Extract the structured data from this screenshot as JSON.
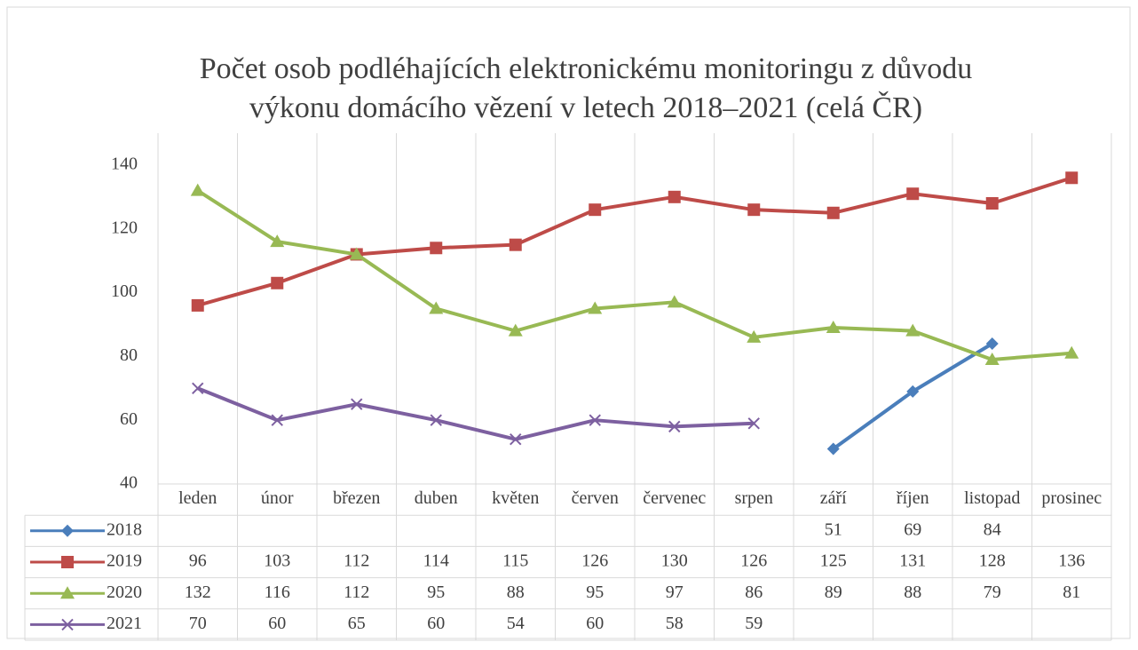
{
  "chart_data": {
    "type": "line",
    "title": [
      "Počet osob podléhajících elektronickému monitoringu z důvodu",
      "výkonu domácího vězení v letech 2018–2021 (celá ČR)"
    ],
    "categories": [
      "leden",
      "únor",
      "březen",
      "duben",
      "květen",
      "červen",
      "červenec",
      "srpen",
      "září",
      "říjen",
      "listopad",
      "prosinec"
    ],
    "series": [
      {
        "name": "2018",
        "color": "#4a7ebb",
        "marker": "diamond",
        "values": [
          null,
          null,
          null,
          null,
          null,
          null,
          null,
          null,
          51,
          69,
          84,
          null
        ]
      },
      {
        "name": "2019",
        "color": "#be4b48",
        "marker": "square",
        "values": [
          96,
          103,
          112,
          114,
          115,
          126,
          130,
          126,
          125,
          131,
          128,
          136
        ]
      },
      {
        "name": "2020",
        "color": "#98b954",
        "marker": "triangle",
        "values": [
          132,
          116,
          112,
          95,
          88,
          95,
          97,
          86,
          89,
          88,
          79,
          81
        ]
      },
      {
        "name": "2021",
        "color": "#7d60a0",
        "marker": "x",
        "values": [
          70,
          60,
          65,
          60,
          54,
          60,
          58,
          59,
          null,
          null,
          null,
          null
        ]
      }
    ],
    "ylim": [
      40,
      150
    ],
    "yticks": [
      40,
      60,
      80,
      100,
      120,
      140
    ],
    "grid": "vertical",
    "legend": "table"
  }
}
